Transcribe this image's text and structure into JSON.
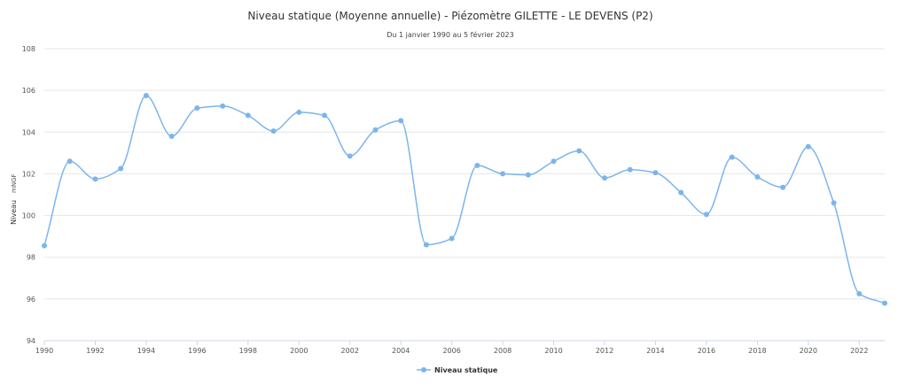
{
  "chart_data": {
    "type": "line",
    "title": "Niveau statique (Moyenne annuelle) - Piézomètre GILETTE - LE DEVENS (P2)",
    "subtitle": "Du 1 janvier 1990 au 5 février 2023",
    "ylabel": "Niveau",
    "yunit": "mNGF",
    "xlim": [
      1990,
      2023
    ],
    "ylim": [
      94,
      108
    ],
    "x_ticks": [
      "1990",
      "1992",
      "1994",
      "1996",
      "1998",
      "2000",
      "2002",
      "2004",
      "2006",
      "2008",
      "2010",
      "2012",
      "2014",
      "2016",
      "2018",
      "2020",
      "2022"
    ],
    "y_ticks": [
      "94",
      "96",
      "98",
      "100",
      "102",
      "104",
      "106",
      "108"
    ],
    "grid": true,
    "legend_position": "bottom-center",
    "color": "#7cb5ec",
    "series": [
      {
        "name": "Niveau statique",
        "x": [
          1990,
          1991,
          1992,
          1993,
          1994,
          1995,
          1996,
          1997,
          1998,
          1999,
          2000,
          2001,
          2002,
          2003,
          2004,
          2005,
          2006,
          2007,
          2008,
          2009,
          2010,
          2011,
          2012,
          2013,
          2014,
          2015,
          2016,
          2017,
          2018,
          2019,
          2020,
          2021,
          2022,
          2023
        ],
        "values": [
          98.55,
          102.6,
          101.75,
          102.25,
          105.75,
          103.8,
          105.15,
          105.25,
          104.8,
          104.05,
          104.95,
          104.8,
          102.85,
          104.1,
          104.55,
          98.6,
          98.9,
          102.4,
          102.0,
          101.95,
          102.6,
          103.1,
          101.8,
          102.2,
          102.05,
          101.1,
          100.05,
          102.8,
          101.85,
          101.35,
          103.3,
          100.6,
          96.25,
          95.8
        ]
      }
    ]
  }
}
